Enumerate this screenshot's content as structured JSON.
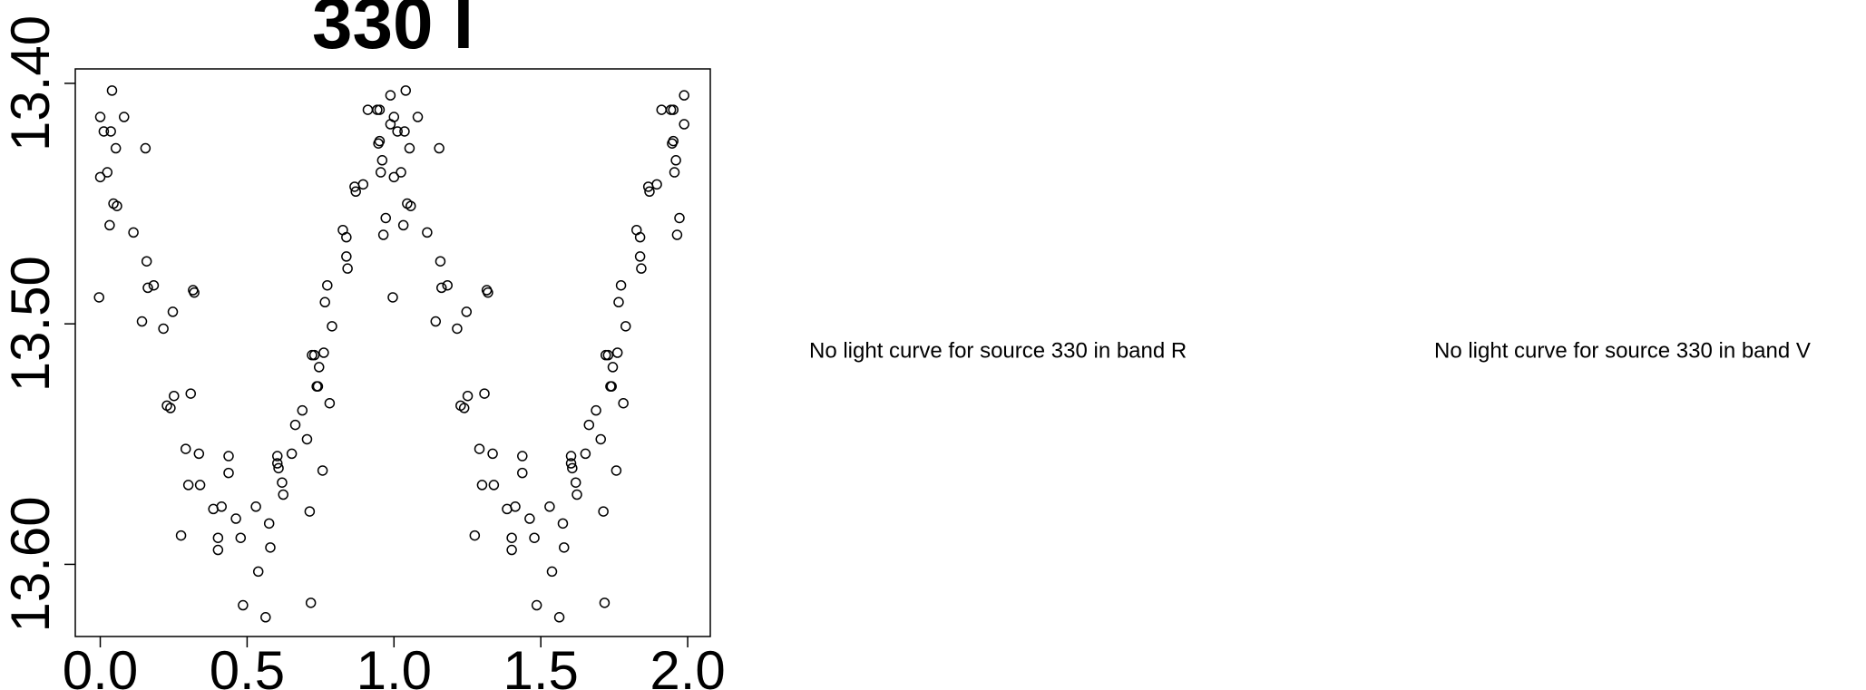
{
  "chart_data": {
    "type": "scatter",
    "title": "330 I",
    "x": [
      0,
      0,
      0.012,
      0.024,
      0.032,
      0.036,
      0.04,
      0.045,
      0.053,
      0.057,
      0.081,
      -0.004,
      0.113,
      0.154,
      0.158,
      0.162,
      0.182,
      0.142,
      0.215,
      0.247,
      0.316,
      0.32,
      0.227,
      0.239,
      0.251,
      0.308,
      0.291,
      0.336,
      0.3,
      0.34,
      0.275,
      0.385,
      0.413,
      0.401,
      0.401,
      0.437,
      0.437,
      0.462,
      0.478,
      0.486,
      0.53,
      0.538,
      0.575,
      0.579,
      0.563,
      0.603,
      0.603,
      0.607,
      0.619,
      0.623,
      0.652,
      0.664,
      0.688,
      0.704,
      0.721,
      0.713,
      0.717,
      0.729,
      0.737,
      0.741,
      0.745,
      0.757,
      0.761,
      0.765,
      0.773,
      0.781,
      0.789,
      0.826,
      0.838,
      0.838,
      0.842,
      0.866,
      0.87,
      0.895,
      0.911,
      0.943,
      0.951,
      0.951,
      0.947,
      0.955,
      0.96,
      0.964,
      0.972,
      0.988,
      0.988,
      1,
      1,
      1.012,
      1.024,
      1.032,
      1.036,
      1.04,
      1.045,
      1.053,
      1.057,
      1.081,
      0.996,
      1.113,
      1.154,
      1.158,
      1.162,
      1.182,
      1.142,
      1.215,
      1.247,
      1.316,
      1.32,
      1.227,
      1.239,
      1.251,
      1.308,
      1.291,
      1.336,
      1.3,
      1.34,
      1.275,
      1.385,
      1.413,
      1.401,
      1.401,
      1.437,
      1.437,
      1.462,
      1.478,
      1.486,
      1.53,
      1.538,
      1.575,
      1.579,
      1.563,
      1.603,
      1.603,
      1.607,
      1.619,
      1.623,
      1.652,
      1.664,
      1.688,
      1.704,
      1.721,
      1.713,
      1.717,
      1.729,
      1.737,
      1.741,
      1.745,
      1.757,
      1.761,
      1.765,
      1.773,
      1.781,
      1.789,
      1.826,
      1.838,
      1.838,
      1.842,
      1.866,
      1.87,
      1.895,
      1.911,
      1.943,
      1.951,
      1.951,
      1.947,
      1.955,
      1.96,
      1.964,
      1.972,
      1.988,
      1.988
    ],
    "values": [
      13.439,
      13.414,
      13.42,
      13.437,
      13.459,
      13.42,
      13.403,
      13.45,
      13.427,
      13.451,
      13.414,
      13.489,
      13.462,
      13.427,
      13.474,
      13.485,
      13.484,
      13.499,
      13.502,
      13.495,
      13.486,
      13.487,
      13.534,
      13.535,
      13.53,
      13.529,
      13.552,
      13.554,
      13.567,
      13.567,
      13.588,
      13.577,
      13.576,
      13.589,
      13.594,
      13.555,
      13.562,
      13.581,
      13.589,
      13.617,
      13.576,
      13.603,
      13.583,
      13.593,
      13.622,
      13.555,
      13.558,
      13.56,
      13.566,
      13.571,
      13.554,
      13.542,
      13.536,
      13.548,
      13.513,
      13.578,
      13.616,
      13.513,
      13.526,
      13.526,
      13.518,
      13.561,
      13.512,
      13.491,
      13.484,
      13.533,
      13.501,
      13.461,
      13.464,
      13.472,
      13.477,
      13.443,
      13.445,
      13.442,
      13.411,
      13.411,
      13.411,
      13.424,
      13.425,
      13.437,
      13.432,
      13.463,
      13.456,
      13.405,
      13.417,
      13.439,
      13.414,
      13.42,
      13.437,
      13.459,
      13.42,
      13.403,
      13.45,
      13.427,
      13.451,
      13.414,
      13.489,
      13.462,
      13.427,
      13.474,
      13.485,
      13.484,
      13.499,
      13.502,
      13.495,
      13.486,
      13.487,
      13.534,
      13.535,
      13.53,
      13.529,
      13.552,
      13.554,
      13.567,
      13.567,
      13.588,
      13.577,
      13.576,
      13.589,
      13.594,
      13.555,
      13.562,
      13.581,
      13.589,
      13.617,
      13.576,
      13.603,
      13.583,
      13.593,
      13.622,
      13.555,
      13.558,
      13.56,
      13.566,
      13.571,
      13.554,
      13.542,
      13.536,
      13.548,
      13.513,
      13.578,
      13.616,
      13.513,
      13.526,
      13.526,
      13.518,
      13.561,
      13.512,
      13.491,
      13.484,
      13.533,
      13.501,
      13.461,
      13.464,
      13.472,
      13.477,
      13.443,
      13.445,
      13.442,
      13.411,
      13.411,
      13.411,
      13.424,
      13.425,
      13.437,
      13.432,
      13.463,
      13.456,
      13.405,
      13.417
    ],
    "color": "#000000",
    "xlim": [
      -0.085,
      2.077
    ],
    "xticks": [
      {
        "value": 0,
        "label": "0.0"
      },
      0.5,
      {
        "value": 1,
        "label": "1.0"
      },
      1.5,
      {
        "value": 2,
        "label": "2.0"
      }
    ],
    "ylim": [
      13.394,
      13.63
    ],
    "invert_y": true,
    "yticks": [
      {
        "value": 13.4,
        "label": "13.40"
      },
      {
        "value": 13.5,
        "label": "13.50"
      },
      {
        "value": 13.6,
        "label": "13.60"
      }
    ]
  },
  "messages": [
    "No light curve for source 330 in band R",
    "No light curve for source 330 in band V"
  ]
}
